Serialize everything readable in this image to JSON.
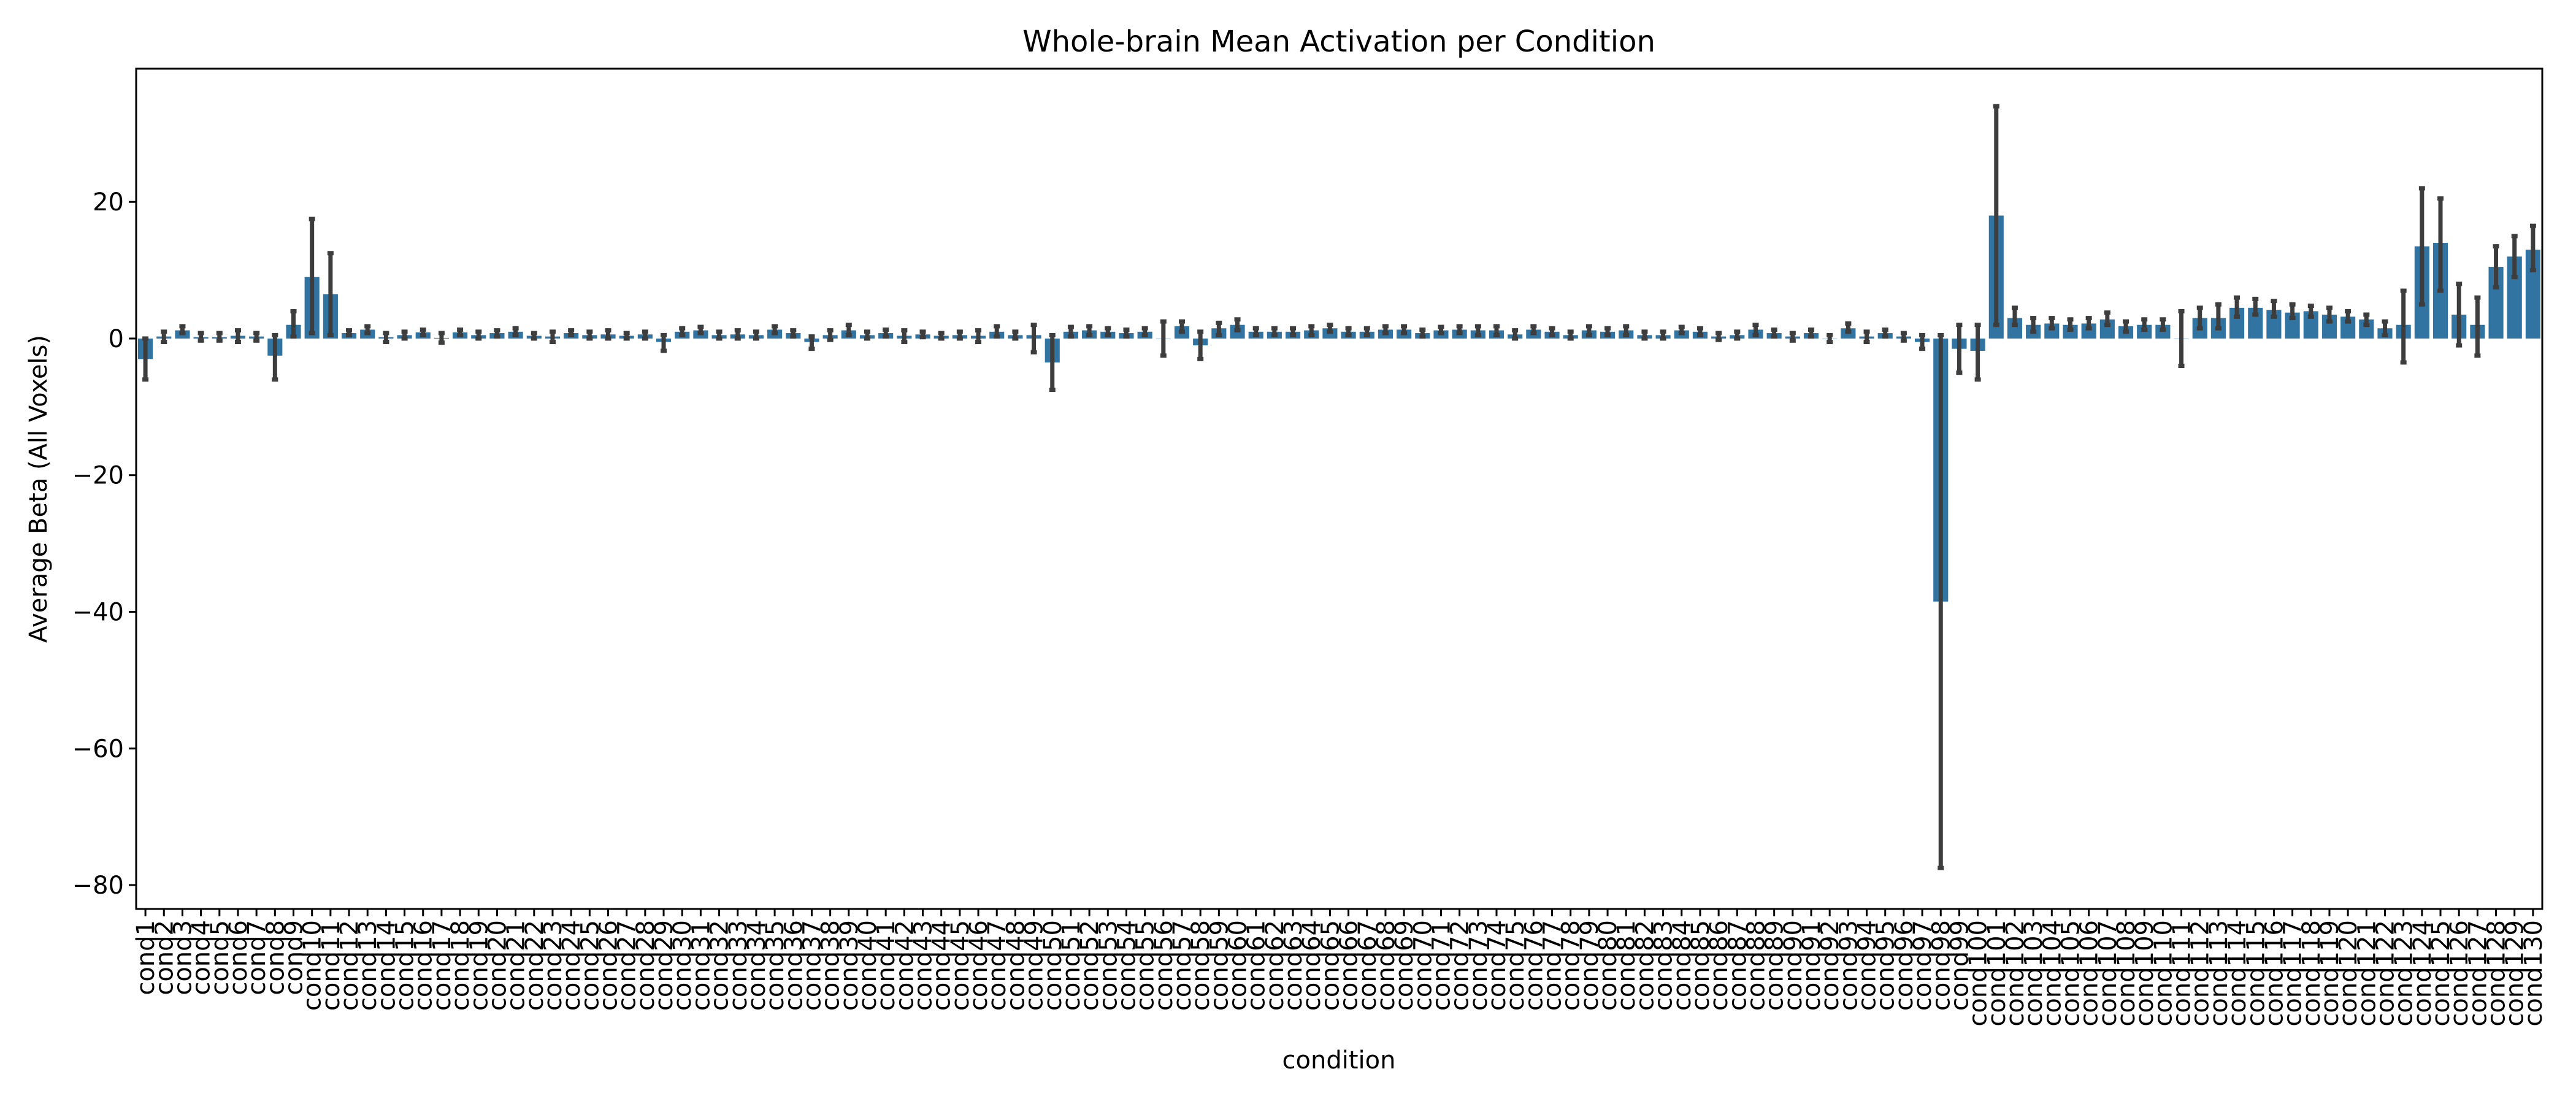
{
  "chart_data": {
    "type": "bar",
    "title": "Whole-brain Mean Activation per Condition",
    "xlabel": "condition",
    "ylabel": "Average Beta (All Voxels)",
    "ylim": [
      -83.5,
      39.5
    ],
    "yticks": [
      -80,
      -60,
      -40,
      -20,
      0,
      20
    ],
    "ytick_labels": [
      "−80",
      "−60",
      "−40",
      "−20",
      "0",
      "20"
    ],
    "grid": false,
    "legend": "none",
    "bar_color": "#3274a1",
    "error_color": "#3d3d3d",
    "categories": [
      "cond1",
      "cond2",
      "cond3",
      "cond4",
      "cond5",
      "cond6",
      "cond7",
      "cond8",
      "cond9",
      "cond10",
      "cond11",
      "cond12",
      "cond13",
      "cond14",
      "cond15",
      "cond16",
      "cond17",
      "cond18",
      "cond19",
      "cond20",
      "cond21",
      "cond22",
      "cond23",
      "cond24",
      "cond25",
      "cond26",
      "cond27",
      "cond28",
      "cond29",
      "cond30",
      "cond31",
      "cond32",
      "cond33",
      "cond34",
      "cond35",
      "cond36",
      "cond37",
      "cond38",
      "cond39",
      "cond40",
      "cond41",
      "cond42",
      "cond43",
      "cond44",
      "cond45",
      "cond46",
      "cond47",
      "cond48",
      "cond49",
      "cond50",
      "cond51",
      "cond52",
      "cond53",
      "cond54",
      "cond55",
      "cond56",
      "cond57",
      "cond58",
      "cond59",
      "cond60",
      "cond61",
      "cond62",
      "cond63",
      "cond64",
      "cond65",
      "cond66",
      "cond67",
      "cond68",
      "cond69",
      "cond70",
      "cond71",
      "cond72",
      "cond73",
      "cond74",
      "cond75",
      "cond76",
      "cond77",
      "cond78",
      "cond79",
      "cond80",
      "cond81",
      "cond82",
      "cond83",
      "cond84",
      "cond85",
      "cond86",
      "cond87",
      "cond88",
      "cond89",
      "cond90",
      "cond91",
      "cond92",
      "cond93",
      "cond94",
      "cond95",
      "cond96",
      "cond97",
      "cond98",
      "cond99",
      "cond100",
      "cond101",
      "cond102",
      "cond103",
      "cond104",
      "cond105",
      "cond106",
      "cond107",
      "cond108",
      "cond109",
      "cond110",
      "cond111",
      "cond112",
      "cond113",
      "cond114",
      "cond115",
      "cond116",
      "cond117",
      "cond118",
      "cond119",
      "cond120",
      "cond121",
      "cond122",
      "cond123",
      "cond124",
      "cond125",
      "cond126",
      "cond127",
      "cond128",
      "cond129",
      "cond130"
    ],
    "values": [
      -3.0,
      0.3,
      1.2,
      0.2,
      0.2,
      0.4,
      0.3,
      -2.5,
      2.0,
      9.0,
      6.5,
      0.8,
      1.3,
      0.2,
      0.5,
      0.9,
      0.1,
      0.9,
      0.5,
      0.8,
      1.0,
      0.4,
      0.3,
      0.8,
      0.5,
      0.6,
      0.4,
      0.6,
      -0.5,
      1.0,
      1.2,
      0.5,
      0.6,
      0.5,
      1.3,
      0.8,
      -0.5,
      0.5,
      1.2,
      0.5,
      0.8,
      0.4,
      0.6,
      0.4,
      0.5,
      0.4,
      1.0,
      0.5,
      0.5,
      -3.5,
      1.0,
      1.2,
      1.0,
      0.8,
      1.0,
      0.0,
      1.8,
      -1.0,
      1.5,
      2.0,
      1.0,
      1.0,
      1.0,
      1.2,
      1.5,
      1.0,
      1.0,
      1.3,
      1.3,
      0.8,
      1.2,
      1.3,
      1.2,
      1.2,
      0.6,
      1.3,
      1.0,
      0.5,
      1.2,
      1.0,
      1.2,
      0.5,
      0.5,
      1.2,
      1.0,
      0.3,
      0.5,
      1.3,
      0.8,
      0.3,
      0.8,
      0.0,
      1.5,
      0.3,
      0.8,
      0.3,
      -0.5,
      -38.5,
      -1.5,
      -1.8,
      18.0,
      3.0,
      2.0,
      2.2,
      2.0,
      2.2,
      2.8,
      1.8,
      2.0,
      2.0,
      0.0,
      3.0,
      3.0,
      4.5,
      4.5,
      4.2,
      3.8,
      4.0,
      3.5,
      3.2,
      2.8,
      1.5,
      2.0,
      13.5,
      14.0,
      3.5,
      2.0,
      10.5,
      12.0,
      13.0
    ],
    "err_low": [
      -6.0,
      -0.5,
      0.8,
      -0.3,
      -0.3,
      -0.5,
      -0.3,
      -6.0,
      0.3,
      0.8,
      0.5,
      0.5,
      0.8,
      -0.5,
      0.0,
      0.5,
      -0.6,
      0.5,
      0.0,
      0.3,
      0.5,
      0.0,
      -0.5,
      0.5,
      0.0,
      0.0,
      0.0,
      0.0,
      -1.8,
      0.5,
      0.8,
      0.0,
      0.0,
      0.0,
      0.8,
      0.3,
      -1.5,
      -0.2,
      0.5,
      0.0,
      0.3,
      -0.5,
      0.2,
      0.0,
      0.0,
      -0.5,
      0.3,
      0.0,
      -2.0,
      -7.5,
      0.3,
      0.5,
      0.5,
      0.3,
      0.5,
      -2.5,
      1.0,
      -3.0,
      0.5,
      1.2,
      0.5,
      0.5,
      0.5,
      0.5,
      1.0,
      0.5,
      0.5,
      0.8,
      0.8,
      0.3,
      0.8,
      0.8,
      0.5,
      0.5,
      0.0,
      0.8,
      0.5,
      0.0,
      0.5,
      0.5,
      0.5,
      0.0,
      0.0,
      0.8,
      0.5,
      -0.2,
      0.0,
      0.5,
      0.3,
      -0.3,
      0.3,
      -0.5,
      1.0,
      -0.5,
      0.3,
      -0.3,
      -1.5,
      -77.5,
      -5.0,
      -6.0,
      2.0,
      2.0,
      1.0,
      1.5,
      1.3,
      1.5,
      2.0,
      1.0,
      1.3,
      1.3,
      -4.0,
      1.5,
      1.5,
      3.2,
      3.5,
      3.2,
      3.0,
      3.2,
      2.5,
      2.5,
      2.0,
      0.5,
      -3.5,
      5.0,
      7.0,
      -1.0,
      -2.5,
      7.5,
      9.0,
      10.0
    ],
    "err_high": [
      0.0,
      1.0,
      1.8,
      0.8,
      0.8,
      1.2,
      0.8,
      0.5,
      4.0,
      17.5,
      12.5,
      1.2,
      1.8,
      0.8,
      1.0,
      1.3,
      0.8,
      1.3,
      1.0,
      1.2,
      1.5,
      0.8,
      1.0,
      1.2,
      1.0,
      1.2,
      0.8,
      1.0,
      0.5,
      1.5,
      1.7,
      1.0,
      1.2,
      1.0,
      1.8,
      1.2,
      0.3,
      1.2,
      2.0,
      1.0,
      1.3,
      1.2,
      1.0,
      0.8,
      1.0,
      1.2,
      1.8,
      1.0,
      2.0,
      0.5,
      1.7,
      1.8,
      1.5,
      1.3,
      1.5,
      2.5,
      2.5,
      1.0,
      2.3,
      2.8,
      1.5,
      1.5,
      1.5,
      1.8,
      2.0,
      1.5,
      1.5,
      1.8,
      1.8,
      1.3,
      1.7,
      1.8,
      1.8,
      1.8,
      1.2,
      1.8,
      1.5,
      1.0,
      1.8,
      1.5,
      1.8,
      1.0,
      1.0,
      1.7,
      1.5,
      0.8,
      1.0,
      2.0,
      1.3,
      0.8,
      1.3,
      0.5,
      2.2,
      1.0,
      1.3,
      0.8,
      0.5,
      0.5,
      2.0,
      2.0,
      34.0,
      4.5,
      3.0,
      3.0,
      2.8,
      3.0,
      3.8,
      2.5,
      2.8,
      2.8,
      4.0,
      4.5,
      5.0,
      6.0,
      5.8,
      5.5,
      5.0,
      4.8,
      4.5,
      4.0,
      3.5,
      2.5,
      7.0,
      22.0,
      20.5,
      8.0,
      6.0,
      13.5,
      15.0,
      16.5
    ]
  }
}
